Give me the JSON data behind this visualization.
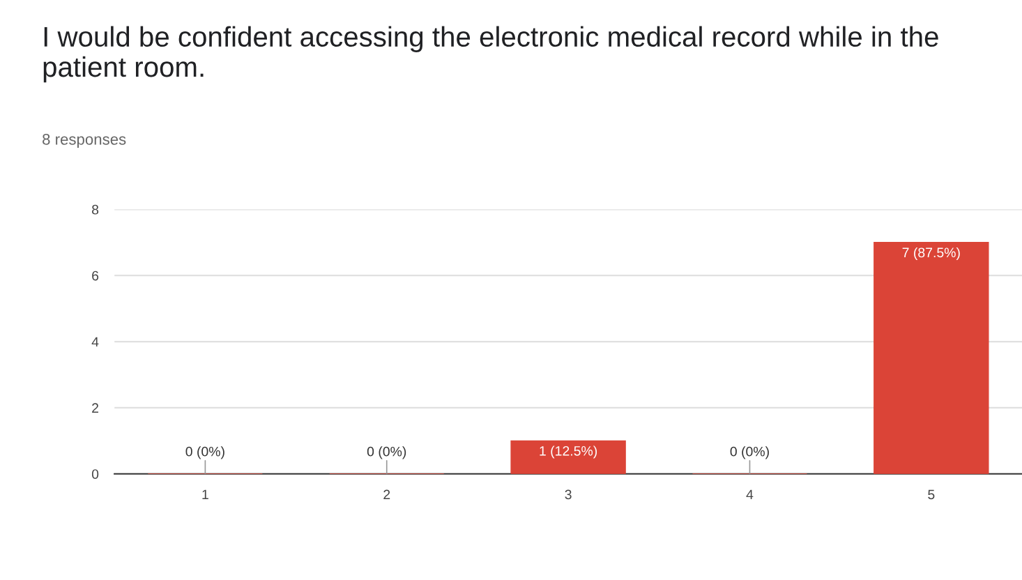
{
  "chart_data": {
    "type": "bar",
    "title": "I would be confident accessing the electronic medical record while in the patient room.",
    "subtitle": "8 responses",
    "categories": [
      "1",
      "2",
      "3",
      "4",
      "5"
    ],
    "values": [
      0,
      0,
      1,
      0,
      7
    ],
    "value_labels": [
      "0 (0%)",
      "0 (0%)",
      "1 (12.5%)",
      "0 (0%)",
      "7 (87.5%)"
    ],
    "color": "#db4437",
    "ylim": [
      0,
      8
    ],
    "yticks": [
      0,
      2,
      4,
      6,
      8
    ],
    "grid": "y",
    "legend": false
  }
}
